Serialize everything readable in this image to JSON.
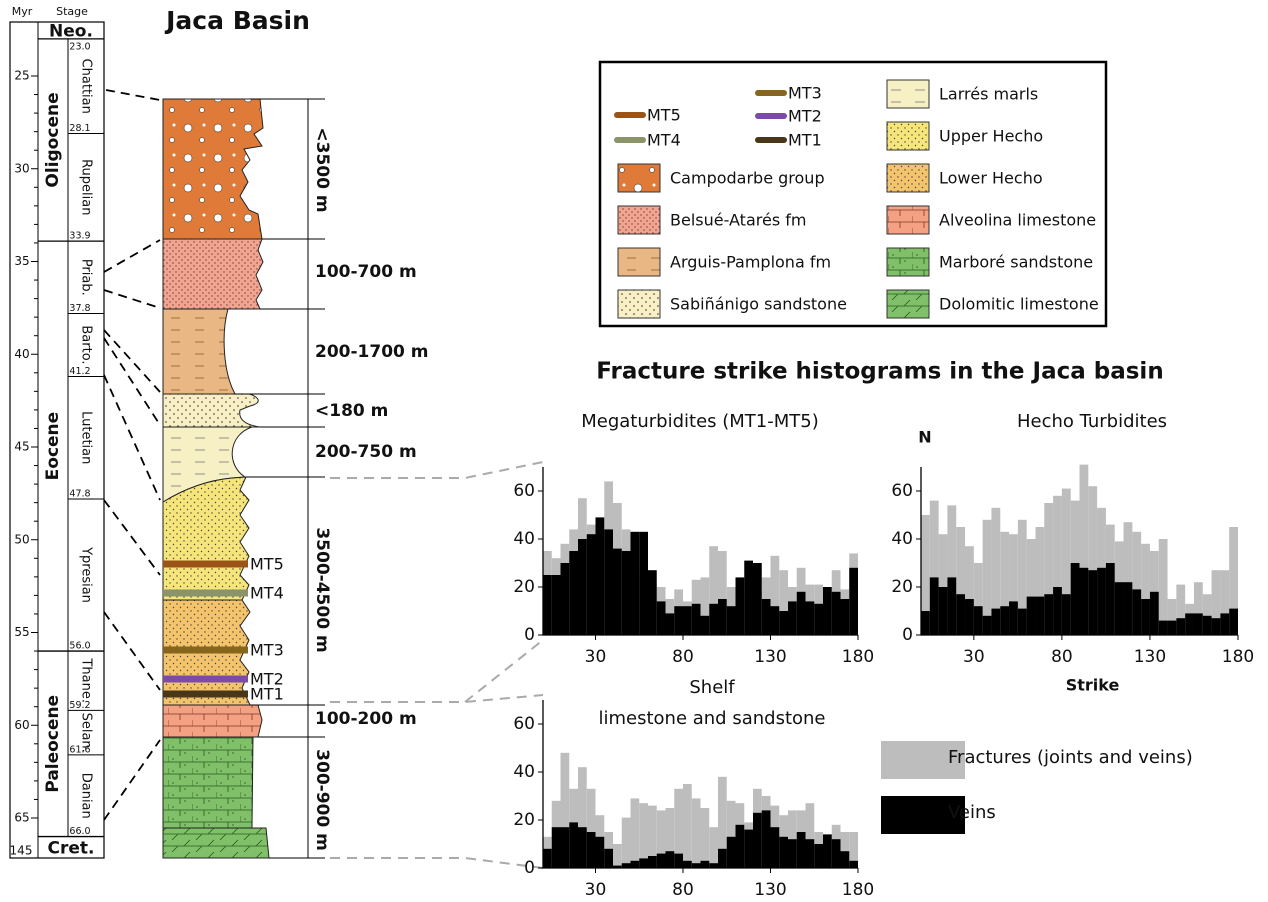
{
  "figure_title": "Jaca Basin",
  "timescale": {
    "axis_label": "Myr",
    "stage_label": "Stage",
    "ticks": [
      25,
      30,
      35,
      40,
      45,
      50,
      55,
      60,
      65
    ],
    "cret_base": 145,
    "epochs": [
      "Neo.",
      "Oligocene",
      "Eocene",
      "Paleocene",
      "Cret."
    ],
    "stages": [
      "Chattian",
      "Rupelian",
      "Priab.",
      "Barto.",
      "Lutetian",
      "Ypresian",
      "Thane.",
      "Selan.",
      "Danian"
    ],
    "boundaries": [
      {
        "value": 23,
        "label": "23.0"
      },
      {
        "value": 28.1,
        "label": "28.1"
      },
      {
        "value": 33.9,
        "label": "33.9"
      },
      {
        "value": 37.8,
        "label": "37.8"
      },
      {
        "value": 41.2,
        "label": "41.2"
      },
      {
        "value": 47.8,
        "label": "47.8"
      },
      {
        "value": 56,
        "label": "56.0"
      },
      {
        "value": 59.2,
        "label": "59.2"
      },
      {
        "value": 61.6,
        "label": "61.6"
      },
      {
        "value": 66,
        "label": "66.0"
      }
    ]
  },
  "column": {
    "thicknesses": [
      "<3500 m",
      "100-700 m",
      "200-1700 m",
      "<180 m",
      "200-750 m",
      "3500-4500 m",
      "100-200 m",
      "300-900 m"
    ]
  },
  "legend": {
    "markers": [
      "MT5",
      "MT4",
      "MT3",
      "MT2",
      "MT1"
    ],
    "formations": [
      "Campodarbe group",
      "Belsué-Atarés fm",
      "Arguis-Pamplona fm",
      "Sabiñánigo sandstone",
      "Larrés marls",
      "Upper Hecho",
      "Lower Hecho",
      "Alveolina limestone",
      "Marboré sandstone",
      "Dolomitic limestone"
    ]
  },
  "histogram_title": "Fracture strike histograms in the Jaca basin",
  "chart_data": [
    {
      "type": "histogram",
      "title": "Megaturbidites (MT1-MT5)",
      "bins": [
        0,
        5,
        10,
        15,
        20,
        25,
        30,
        35,
        40,
        45,
        50,
        55,
        60,
        65,
        70,
        75,
        80,
        85,
        90,
        95,
        100,
        105,
        110,
        115,
        120,
        125,
        130,
        135,
        140,
        145,
        150,
        155,
        160,
        165,
        170,
        175,
        180
      ],
      "xlim": [
        0,
        180
      ],
      "ylim": [
        0,
        70
      ],
      "xticks": [
        30,
        80,
        130,
        180
      ],
      "yticks": [
        0,
        20,
        40,
        60
      ],
      "series": [
        {
          "color": "#bdbdbd",
          "values": [
            35,
            32,
            38,
            44,
            57,
            46,
            48,
            64,
            55,
            44,
            29,
            24,
            15,
            20,
            15,
            19,
            14,
            23,
            24,
            37,
            35,
            20,
            17,
            24,
            18,
            24,
            33,
            27,
            20,
            28,
            21,
            21,
            20,
            27,
            19,
            34
          ]
        },
        {
          "color": "#000000",
          "values": [
            25,
            25,
            30,
            35,
            40,
            42,
            49,
            44,
            36,
            35,
            43,
            43,
            27,
            14,
            9,
            12,
            12,
            13,
            8,
            13,
            15,
            12,
            24,
            31,
            30,
            15,
            12,
            10,
            14,
            18,
            14,
            13,
            20,
            18,
            15,
            28
          ]
        }
      ]
    },
    {
      "type": "histogram",
      "title": "Hecho Turbidites",
      "xlabel": "Strike",
      "ylabel": "N",
      "bins": [
        0,
        5,
        10,
        15,
        20,
        25,
        30,
        35,
        40,
        45,
        50,
        55,
        60,
        65,
        70,
        75,
        80,
        85,
        90,
        95,
        100,
        105,
        110,
        115,
        120,
        125,
        130,
        135,
        140,
        145,
        150,
        155,
        160,
        165,
        170,
        175,
        180
      ],
      "xlim": [
        0,
        180
      ],
      "ylim": [
        0,
        70
      ],
      "xticks": [
        30,
        80,
        130,
        180
      ],
      "yticks": [
        0,
        20,
        40,
        60
      ],
      "series": [
        {
          "color": "#bdbdbd",
          "values": [
            50,
            56,
            42,
            54,
            45,
            37,
            30,
            48,
            53,
            43,
            42,
            48,
            40,
            45,
            55,
            58,
            61,
            56,
            71,
            62,
            53,
            46,
            39,
            47,
            43,
            38,
            35,
            40,
            15,
            21,
            13,
            22,
            17,
            27,
            27,
            45
          ]
        },
        {
          "color": "#000000",
          "values": [
            10,
            24,
            20,
            24,
            17,
            15,
            12,
            8,
            11,
            12,
            14,
            11,
            16,
            16,
            17,
            20,
            17,
            30,
            28,
            27,
            28,
            30,
            22,
            22,
            19,
            15,
            18,
            6,
            6,
            7,
            9,
            9,
            8,
            7,
            9,
            11
          ]
        }
      ]
    },
    {
      "type": "histogram",
      "title": "Shelf",
      "subtitle": "limestone and sandstone",
      "bins": [
        0,
        5,
        10,
        15,
        20,
        25,
        30,
        35,
        40,
        45,
        50,
        55,
        60,
        65,
        70,
        75,
        80,
        85,
        90,
        95,
        100,
        105,
        110,
        115,
        120,
        125,
        130,
        135,
        140,
        145,
        150,
        155,
        160,
        165,
        170,
        175,
        180
      ],
      "xlim": [
        0,
        180
      ],
      "ylim": [
        0,
        70
      ],
      "xticks": [
        30,
        80,
        130,
        180
      ],
      "yticks": [
        0,
        20,
        40,
        60
      ],
      "series": [
        {
          "name": "Fractures (joints and veins)",
          "color": "#bdbdbd",
          "values": [
            13,
            28,
            48,
            33,
            42,
            33,
            22,
            15,
            10,
            21,
            29,
            27,
            26,
            24,
            25,
            33,
            35,
            29,
            25,
            17,
            38,
            28,
            27,
            19,
            33,
            30,
            26,
            22,
            24,
            24,
            27,
            15,
            14,
            18,
            15,
            15
          ]
        },
        {
          "name": "Veins",
          "color": "#000000",
          "values": [
            8,
            17,
            17,
            19,
            17,
            15,
            13,
            8,
            1,
            2,
            3,
            4,
            5,
            6,
            7,
            6,
            3,
            2,
            3,
            2,
            8,
            13,
            18,
            16,
            23,
            24,
            17,
            13,
            12,
            15,
            12,
            10,
            14,
            12,
            7,
            3
          ]
        }
      ]
    }
  ]
}
